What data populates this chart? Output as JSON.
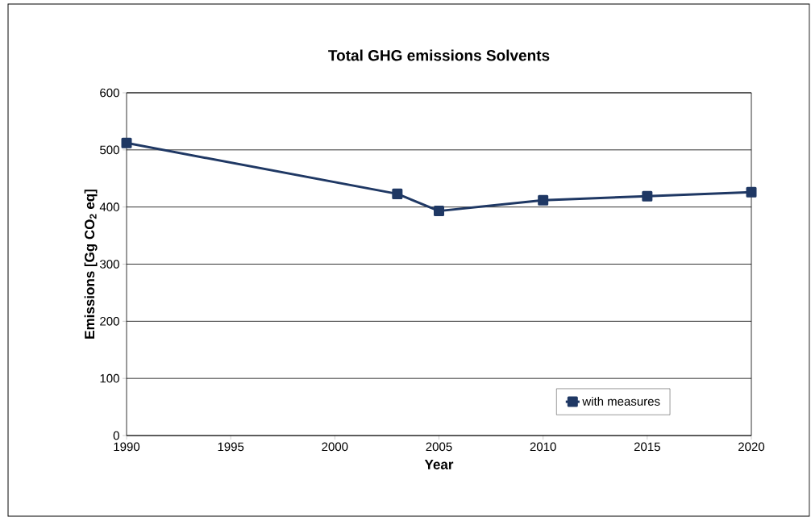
{
  "chart_data": {
    "type": "line",
    "title": "Total GHG emissions Solvents",
    "xlabel": "Year",
    "ylabel": "Emissions [Gg CO$_{2}$ eq]",
    "x": [
      1990,
      2003,
      2005,
      2010,
      2015,
      2020
    ],
    "series": [
      {
        "name": "with measures",
        "color": "#1f3864",
        "values": [
          512,
          423,
          393,
          412,
          419,
          426
        ]
      }
    ],
    "xlim": [
      1990,
      2020
    ],
    "xticks": [
      1990,
      1995,
      2000,
      2005,
      2010,
      2015,
      2020
    ],
    "ylim": [
      0,
      600
    ],
    "yticks": [
      0,
      100,
      200,
      300,
      400,
      500,
      600
    ],
    "grid": "y",
    "legend": "bottom right",
    "marker": "square",
    "line_style": "solid"
  }
}
